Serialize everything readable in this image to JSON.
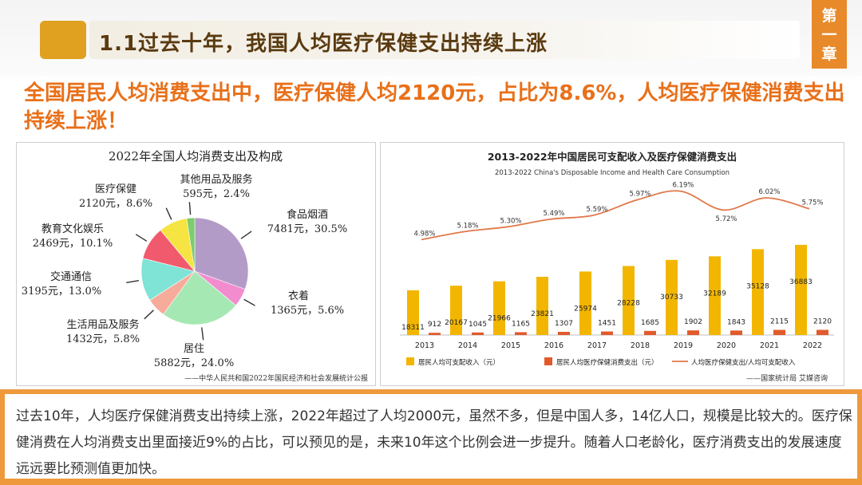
{
  "header": {
    "section_title": "1.1过去十年，我国人均医疗保健支出持续上涨",
    "chapter_chars": [
      "第",
      "一",
      "章"
    ]
  },
  "headline": "全国居民人均消费支出中，医疗保健人均2120元，占比为8.6%，人均医疗保健消费支出持续上涨！",
  "colors": {
    "accent": "#e8892a",
    "headline": "#e8701a",
    "bar_income": "#f2b600",
    "bar_health": "#e15a2b",
    "line_ratio": "#e0784a"
  },
  "chart_data": [
    {
      "type": "pie",
      "title": "2022年全国人均消费支出及构成",
      "source": "——中华人民共和国2022年国民经济和社会发展统计公报",
      "slices": [
        {
          "name": "食品烟酒",
          "value": 7481,
          "pct": 30.5,
          "amount_label": "7481元，30.5%",
          "color": "#b39bc8"
        },
        {
          "name": "衣着",
          "value": 1365,
          "pct": 5.6,
          "amount_label": "1365元，5.6%",
          "color": "#f28ccf"
        },
        {
          "name": "居住",
          "value": 5882,
          "pct": 24.0,
          "amount_label": "5882元，24.0%",
          "color": "#a6e8b4"
        },
        {
          "name": "生活用品及服务",
          "value": 1432,
          "pct": 5.8,
          "amount_label": "1432元，5.8%",
          "color": "#f7ab9a"
        },
        {
          "name": "交通通信",
          "value": 3195,
          "pct": 13.0,
          "amount_label": "3195元，13.0%",
          "color": "#7fe3d6"
        },
        {
          "name": "教育文化娱乐",
          "value": 2469,
          "pct": 10.1,
          "amount_label": "2469元，10.1%",
          "color": "#f15a6c"
        },
        {
          "name": "医疗保健",
          "value": 2120,
          "pct": 8.6,
          "amount_label": "2120元，8.6%",
          "color": "#f5e442"
        },
        {
          "name": "其他用品及服务",
          "value": 595,
          "pct": 2.4,
          "amount_label": "595元，2.4%",
          "color": "#7ccd6c"
        }
      ]
    },
    {
      "type": "bar",
      "title": "2013-2022年中国居民可支配收入及医疗保健消费支出",
      "subtitle": "2013-2022  China's Disposable Income and Health Care Consumption",
      "source": "——国家统计局  艾媒咨询",
      "categories": [
        "2013",
        "2014",
        "2015",
        "2016",
        "2017",
        "2018",
        "2019",
        "2020",
        "2021",
        "2022"
      ],
      "series": [
        {
          "name": "居民人均可支配收入（元）",
          "kind": "bar",
          "values": [
            18311,
            20167,
            21966,
            23821,
            25974,
            28228,
            30733,
            32189,
            35128,
            36883
          ]
        },
        {
          "name": "居民人均医疗保健消费支出（元）",
          "kind": "bar",
          "values": [
            912,
            1045,
            1165,
            1307,
            1451,
            1685,
            1902,
            1843,
            2115,
            2120
          ]
        },
        {
          "name": "人均医疗保健支出/人均可支配收入",
          "kind": "line",
          "values": [
            4.98,
            5.18,
            5.3,
            5.49,
            5.59,
            5.97,
            6.19,
            5.72,
            6.02,
            5.75
          ],
          "labels": [
            "4.98%",
            "5.18%",
            "5.30%",
            "5.49%",
            "5.59%",
            "5.97%",
            "6.19%",
            "5.72%",
            "6.02%",
            "5.75%"
          ]
        }
      ],
      "ylim_bar": [
        0,
        46000
      ],
      "ylim_line": [
        2.6,
        6.6
      ]
    }
  ],
  "summary": "过去10年，人均医疗保健消费支出持续上涨，2022年超过了人均2000元，虽然不多，但是中国人多，14亿人口，规模是比较大的。医疗保健消费在人均消费支出里面接近9%的占比，可以预见的是，未来10年这个比例会进一步提升。随着人口老龄化，医疗消费支出的发展速度远远要比预测值更加快。"
}
